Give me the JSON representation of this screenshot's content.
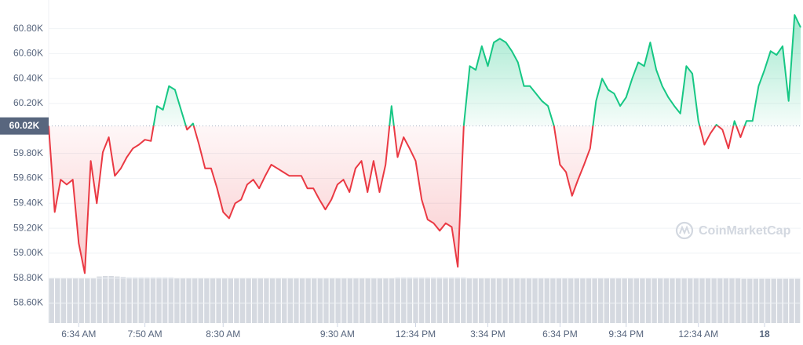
{
  "chart_data": {
    "type": "line",
    "baseline": {
      "value": 60.02,
      "label": "60.02K"
    },
    "up_color": "#16c784",
    "down_color": "#ea3943",
    "volume_color": "#d5d9e0",
    "watermark": "CoinMarketCap",
    "ylim": [
      58.44,
      61.03
    ],
    "yticks": [
      {
        "value": 60.8,
        "label": "60.80K"
      },
      {
        "value": 60.6,
        "label": "60.60K"
      },
      {
        "value": 60.4,
        "label": "60.40K"
      },
      {
        "value": 60.2,
        "label": "60.20K"
      },
      {
        "value": 59.8,
        "label": "59.80K"
      },
      {
        "value": 59.6,
        "label": "59.60K"
      },
      {
        "value": 59.4,
        "label": "59.40K"
      },
      {
        "value": 59.2,
        "label": "59.20K"
      },
      {
        "value": 59.0,
        "label": "59.00K"
      },
      {
        "value": 58.8,
        "label": "58.80K"
      },
      {
        "value": 58.6,
        "label": "58.60K"
      }
    ],
    "grid": true,
    "xlim": [
      0,
      125
    ],
    "xticks": [
      {
        "value": 5,
        "label": "6:34 AM"
      },
      {
        "value": 16,
        "label": "7:50 AM"
      },
      {
        "value": 29,
        "label": "8:30 AM"
      },
      {
        "value": 48,
        "label": "9:30 AM"
      },
      {
        "value": 61,
        "label": "12:34 PM"
      },
      {
        "value": 73,
        "label": "3:34 PM"
      },
      {
        "value": 85,
        "label": "6:34 PM"
      },
      {
        "value": 96,
        "label": "9:34 PM"
      },
      {
        "value": 108,
        "label": "12:34 AM"
      },
      {
        "value": 119,
        "label": "18"
      }
    ],
    "values": [
      60.02,
      59.33,
      59.59,
      59.55,
      59.59,
      59.08,
      58.84,
      59.74,
      59.4,
      59.81,
      59.93,
      59.62,
      59.68,
      59.77,
      59.84,
      59.87,
      59.91,
      59.9,
      60.18,
      60.15,
      60.34,
      60.31,
      60.15,
      59.99,
      60.04,
      59.87,
      59.68,
      59.68,
      59.52,
      59.33,
      59.28,
      59.4,
      59.43,
      59.55,
      59.59,
      59.52,
      59.62,
      59.71,
      59.68,
      59.65,
      59.62,
      59.62,
      59.62,
      59.52,
      59.52,
      59.43,
      59.35,
      59.43,
      59.55,
      59.59,
      59.49,
      59.68,
      59.74,
      59.49,
      59.74,
      59.49,
      59.71,
      60.18,
      59.77,
      59.93,
      59.84,
      59.74,
      59.43,
      59.27,
      59.24,
      59.18,
      59.24,
      59.21,
      58.89,
      60.02,
      60.5,
      60.47,
      60.66,
      60.5,
      60.69,
      60.72,
      60.69,
      60.62,
      60.53,
      60.34,
      60.34,
      60.28,
      60.22,
      60.18,
      60.02,
      59.71,
      59.65,
      59.46,
      59.59,
      59.71,
      59.84,
      60.22,
      60.4,
      60.31,
      60.28,
      60.18,
      60.25,
      60.4,
      60.53,
      60.5,
      60.69,
      60.47,
      60.34,
      60.25,
      60.18,
      60.12,
      60.5,
      60.44,
      60.06,
      59.87,
      59.96,
      60.03,
      59.99,
      59.84,
      60.06,
      59.93,
      60.06,
      60.06,
      60.34,
      60.47,
      60.62,
      60.59,
      60.66,
      60.22,
      60.91,
      60.81
    ],
    "volume": [
      96,
      96,
      96,
      96,
      96,
      96,
      96,
      96,
      99,
      100,
      100,
      99,
      98,
      97,
      97,
      97,
      97,
      97,
      97,
      97,
      97,
      96,
      96,
      96,
      96,
      96,
      96,
      96,
      96,
      96,
      96,
      96,
      96,
      96,
      96,
      96,
      96,
      96,
      96,
      96,
      96,
      96,
      96,
      96,
      96,
      96,
      96,
      96,
      96,
      96,
      96,
      96,
      96,
      96,
      96,
      96,
      96,
      96,
      97,
      97,
      97,
      97,
      97,
      97,
      97,
      97,
      97,
      97,
      97,
      97,
      96,
      96,
      96,
      96,
      96,
      96,
      96,
      96,
      96,
      96,
      95,
      95,
      95,
      95,
      95,
      95,
      95,
      95,
      95,
      95,
      95,
      95,
      95,
      95,
      95,
      95,
      95,
      95,
      95,
      95,
      95,
      95,
      95,
      95,
      95,
      95,
      95,
      95,
      95,
      95,
      95,
      95,
      95,
      95,
      95,
      95,
      94,
      94,
      94,
      94,
      94,
      94,
      94,
      94,
      94,
      94
    ]
  }
}
